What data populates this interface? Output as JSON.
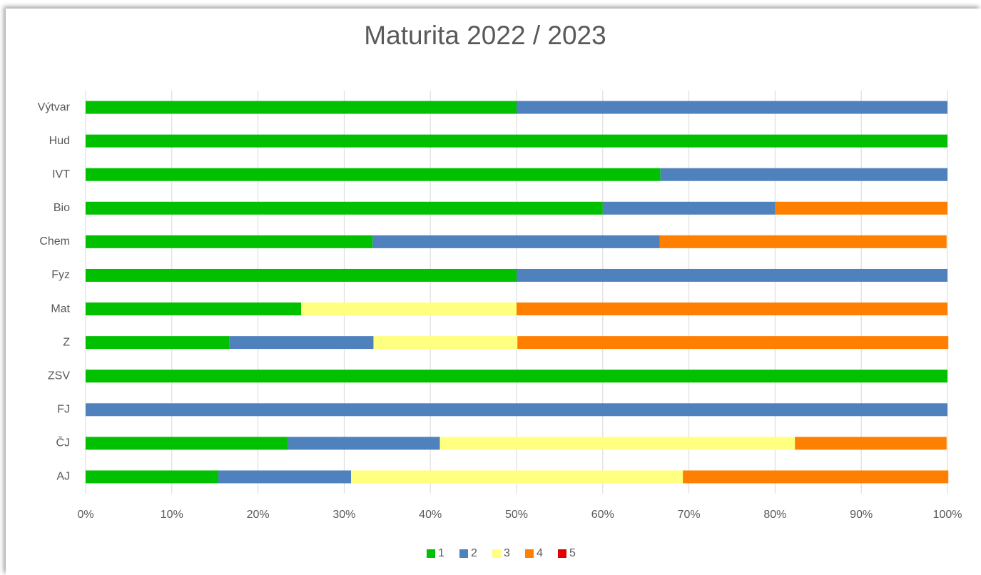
{
  "chart_data": {
    "type": "stacked-barh",
    "title": "Maturita 2022 / 2023",
    "categories": [
      "AJ",
      "ČJ",
      "FJ",
      "ZSV",
      "Z",
      "Mat",
      "Fyz",
      "Chem",
      "Bio",
      "IVT",
      "Hud",
      "Výtvar"
    ],
    "series": [
      {
        "name": "1",
        "color": "#00c000",
        "values": [
          15.4,
          23.5,
          0,
          100,
          16.7,
          25,
          50,
          33.3,
          60,
          66.7,
          100,
          50
        ]
      },
      {
        "name": "2",
        "color": "#4f81bd",
        "values": [
          15.4,
          17.6,
          100,
          0,
          16.7,
          0,
          50,
          33.3,
          20,
          33.3,
          0,
          50
        ]
      },
      {
        "name": "3",
        "color": "#ffff80",
        "values": [
          38.5,
          41.2,
          0,
          0,
          16.7,
          25,
          0,
          0,
          0,
          0,
          0,
          0
        ]
      },
      {
        "name": "4",
        "color": "#ff8000",
        "values": [
          30.8,
          17.6,
          0,
          0,
          50,
          50,
          0,
          33.3,
          20,
          0,
          0,
          0
        ]
      },
      {
        "name": "5",
        "color": "#e00000",
        "values": [
          0,
          0,
          0,
          0,
          0,
          0,
          0,
          0,
          0,
          0,
          0,
          0
        ]
      }
    ],
    "xlim": [
      0,
      100
    ],
    "xticks": [
      {
        "value": 0,
        "label": "0%"
      },
      {
        "value": 10,
        "label": "10%"
      },
      {
        "value": 20,
        "label": "20%"
      },
      {
        "value": 30,
        "label": "30%"
      },
      {
        "value": 40,
        "label": "40%"
      },
      {
        "value": 50,
        "label": "50%"
      },
      {
        "value": 60,
        "label": "60%"
      },
      {
        "value": 70,
        "label": "70%"
      },
      {
        "value": 80,
        "label": "80%"
      },
      {
        "value": 90,
        "label": "90%"
      },
      {
        "value": 100,
        "label": "100%"
      }
    ],
    "grid": true,
    "legend": "bottom"
  }
}
